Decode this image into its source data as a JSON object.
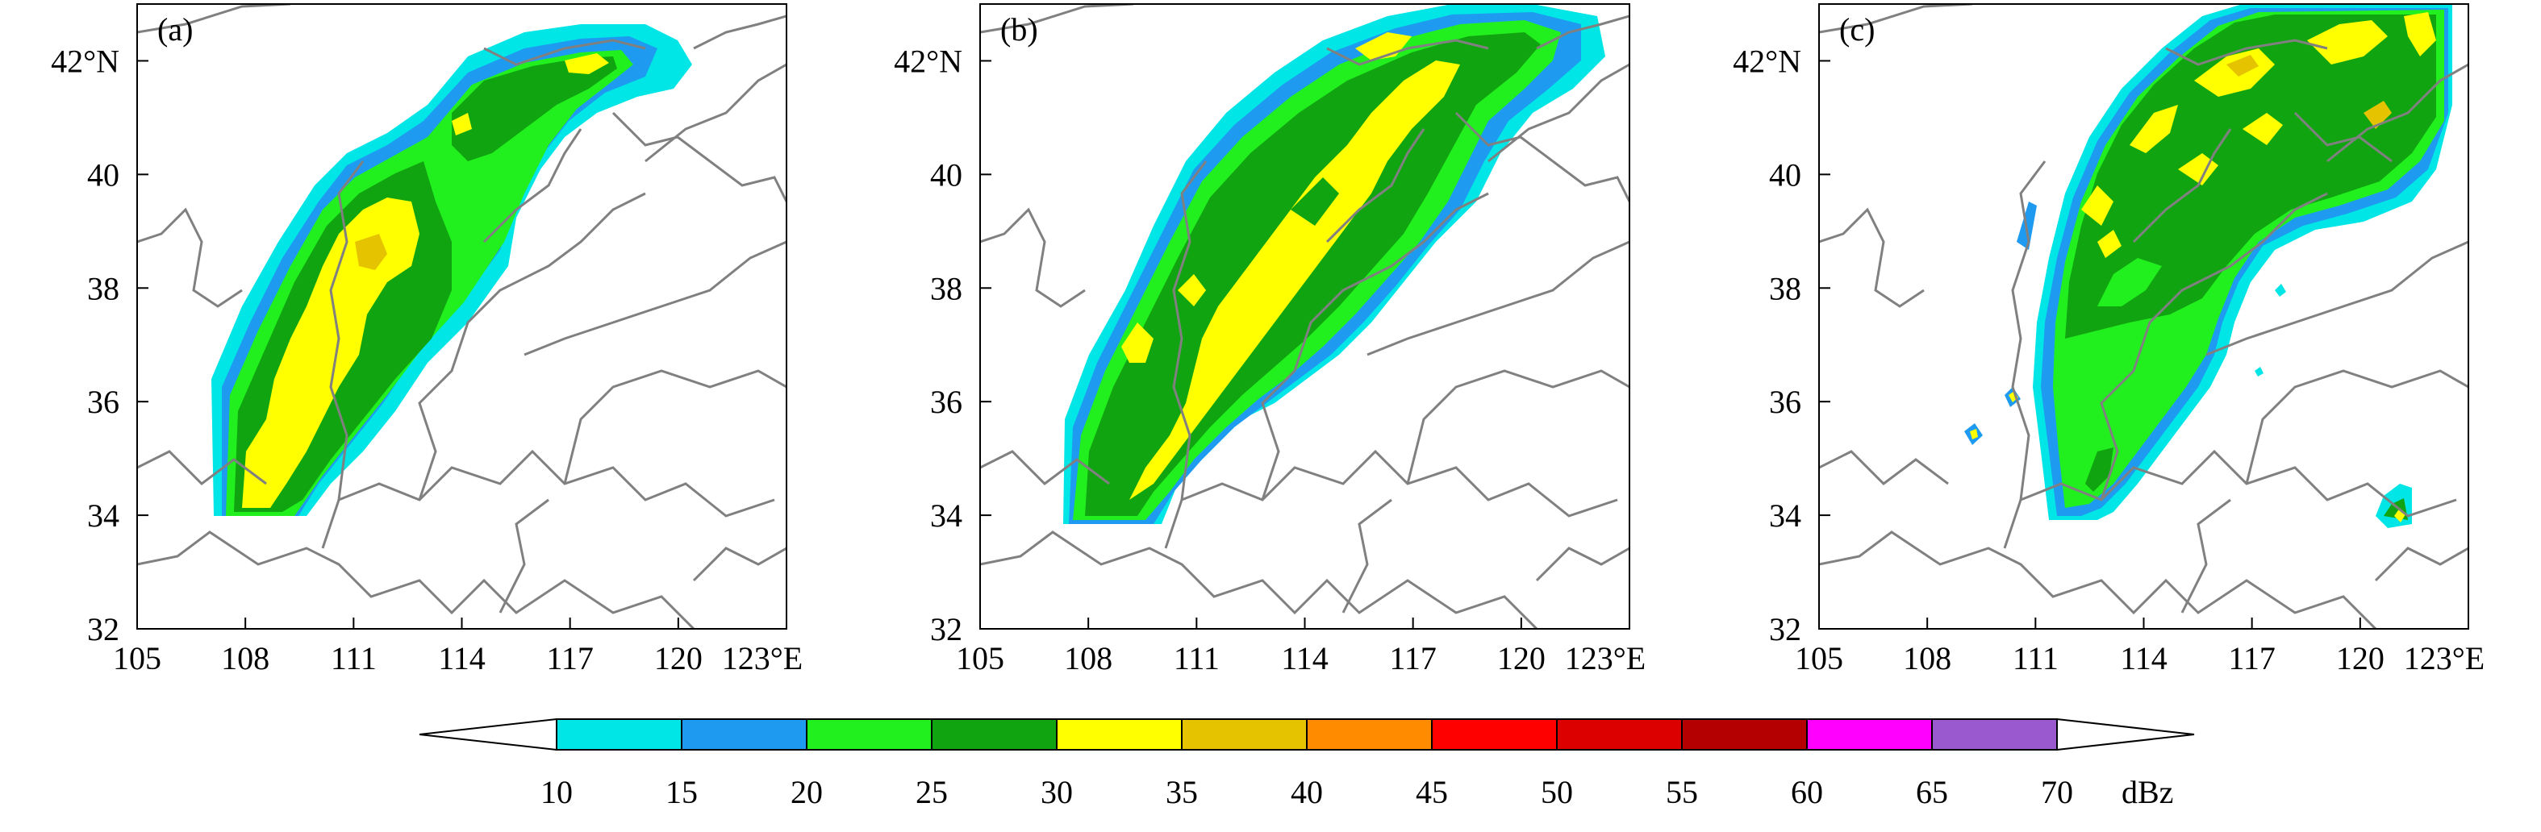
{
  "panels": [
    {
      "id": "a",
      "label": "(a)"
    },
    {
      "id": "b",
      "label": "(b)"
    },
    {
      "id": "c",
      "label": "(c)"
    }
  ],
  "lat_ticks": [
    "32",
    "34",
    "36",
    "38",
    "40",
    "42°N"
  ],
  "lon_ticks": [
    "105",
    "108",
    "111",
    "114",
    "117",
    "120",
    "123°E"
  ],
  "lon_range": [
    105,
    123
  ],
  "lat_range": [
    32,
    43
  ],
  "colorbar": {
    "unit": "dBz",
    "tick_labels": [
      "10",
      "15",
      "20",
      "25",
      "30",
      "35",
      "40",
      "45",
      "50",
      "55",
      "60",
      "65",
      "70"
    ],
    "colors": [
      "#00e5e5",
      "#1e9bf0",
      "#22f01e",
      "#10a510",
      "#ffff00",
      "#e6c300",
      "#ff8c00",
      "#ff0000",
      "#dc0000",
      "#b40000",
      "#ff00ff",
      "#9b59d0"
    ]
  },
  "map_style": {
    "boundary_color": "#808080",
    "frame_color": "#000000"
  }
}
